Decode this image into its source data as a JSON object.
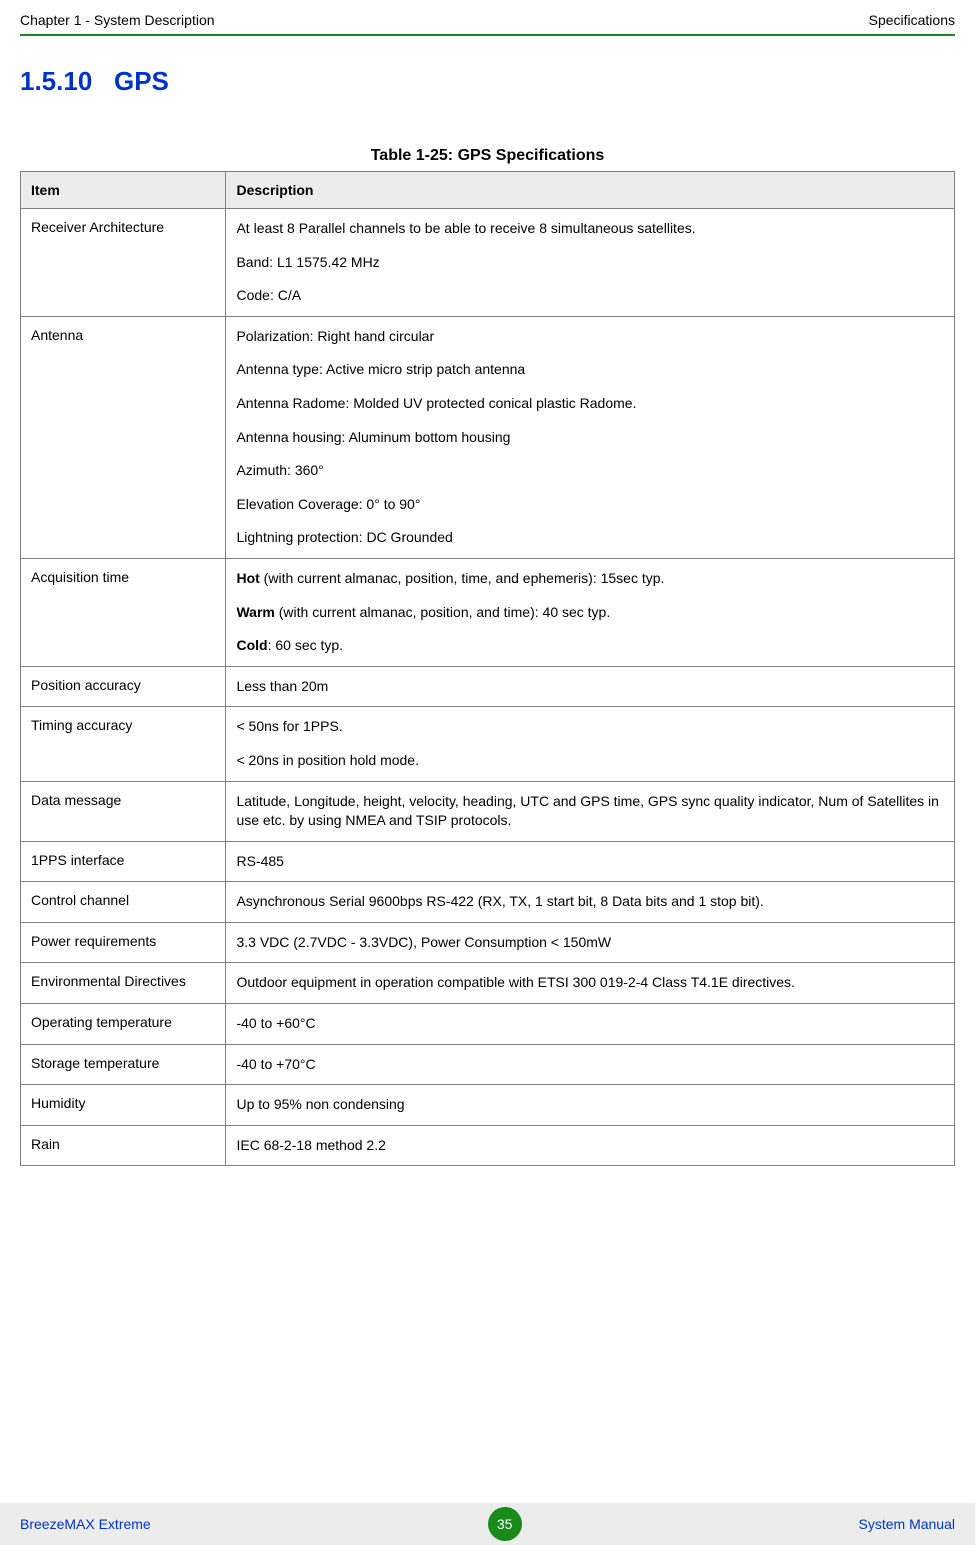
{
  "header": {
    "left": "Chapter 1 - System Description",
    "right": "Specifications"
  },
  "section": {
    "number": "1.5.10",
    "title": "GPS"
  },
  "table": {
    "caption": "Table 1-25: GPS Specifications",
    "columns": [
      "Item",
      "Description"
    ],
    "rows": [
      {
        "item": "Receiver Architecture",
        "desc": [
          "At least 8 Parallel channels to be able to receive 8 simultaneous satellites.",
          "Band: L1 1575.42 MHz",
          "Code: C/A"
        ]
      },
      {
        "item": "Antenna",
        "desc": [
          "Polarization: Right hand circular",
          "Antenna type: Active micro strip patch antenna",
          "Antenna Radome: Molded UV protected conical plastic Radome.",
          "Antenna housing: Aluminum bottom housing",
          "Azimuth: 360°",
          "Elevation Coverage: 0° to 90°",
          "Lightning protection: DC Grounded"
        ]
      },
      {
        "item": "Acquisition time",
        "desc_rich": [
          [
            {
              "b": "Hot"
            },
            {
              "t": " (with current almanac, position, time, and ephemeris): 15sec typ."
            }
          ],
          [
            {
              "b": "Warm"
            },
            {
              "t": " (with current almanac, position, and time): 40 sec typ."
            }
          ],
          [
            {
              "b": "Cold"
            },
            {
              "t": ": 60 sec typ."
            }
          ]
        ]
      },
      {
        "item": "Position accuracy",
        "desc": [
          "Less than 20m"
        ]
      },
      {
        "item": "Timing accuracy",
        "desc": [
          "< 50ns for 1PPS.",
          "< 20ns in position hold mode."
        ]
      },
      {
        "item": "Data message",
        "desc": [
          "Latitude, Longitude, height, velocity, heading, UTC and GPS time, GPS sync quality indicator, Num of Satellites in use etc. by using NMEA and TSIP protocols."
        ]
      },
      {
        "item": "1PPS interface",
        "desc": [
          "RS-485"
        ]
      },
      {
        "item": "Control channel",
        "desc": [
          "Asynchronous Serial 9600bps RS-422 (RX, TX, 1 start bit, 8 Data bits and 1 stop bit)."
        ]
      },
      {
        "item": "Power requirements",
        "desc": [
          "3.3 VDC (2.7VDC - 3.3VDC), Power Consumption < 150mW"
        ]
      },
      {
        "item": "Environmental Directives",
        "desc": [
          "Outdoor equipment in operation compatible with ETSI 300 019-2-4 Class T4.1E directives."
        ]
      },
      {
        "item": "Operating temperature",
        "desc": [
          "-40 to +60°C"
        ]
      },
      {
        "item": "Storage temperature",
        "desc": [
          "-40 to +70°C"
        ]
      },
      {
        "item": "Humidity",
        "desc": [
          "Up to 95% non condensing"
        ]
      },
      {
        "item": "Rain",
        "desc": [
          "IEC 68-2-18 method 2.2"
        ]
      }
    ]
  },
  "footer": {
    "left": "BreezeMAX Extreme",
    "page": "35",
    "right": "System Manual"
  },
  "colors": {
    "heading_blue": "#0033cc",
    "divider_green": "#1a8a1a",
    "th_bg": "#ececec",
    "footer_bg": "#ececec",
    "badge_bg": "#1a8a1a"
  }
}
